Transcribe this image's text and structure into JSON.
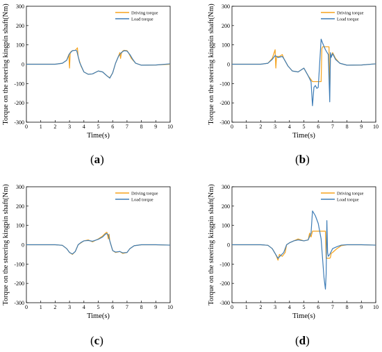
{
  "series_colors": {
    "Driving torque": "#f5a21b",
    "Load torque": "#3d7cb6"
  },
  "panel_labels": [
    "a",
    "b",
    "c",
    "d"
  ],
  "chart_data": [
    {
      "type": "line",
      "xlabel": "Time(s)",
      "ylabel": "Torque on the steering kingpin shaft(Nm)",
      "xlim": [
        0,
        10
      ],
      "ylim": [
        -300,
        300
      ],
      "xticks": [
        0,
        1,
        2,
        3,
        4,
        5,
        6,
        7,
        8,
        9,
        10
      ],
      "yticks": [
        300,
        200,
        100,
        0,
        -100,
        -200,
        -300
      ],
      "legend_position": "top-right",
      "series": [
        {
          "name": "Driving torque",
          "x": [
            0,
            1,
            2,
            2.5,
            2.8,
            2.95,
            3.0,
            3.05,
            3.1,
            3.2,
            3.4,
            3.5,
            3.55,
            3.6,
            3.8,
            4.0,
            4.3,
            4.6,
            5.0,
            5.3,
            5.6,
            5.8,
            6.0,
            6.2,
            6.4,
            6.5,
            6.55,
            6.6,
            6.7,
            6.8,
            7.0,
            7.1,
            7.3,
            7.6,
            8.0,
            9.0,
            10.0
          ],
          "y": [
            0,
            0,
            0,
            5,
            20,
            50,
            -20,
            60,
            65,
            70,
            72,
            80,
            85,
            40,
            -10,
            -40,
            -52,
            -50,
            -35,
            -40,
            -60,
            -70,
            -45,
            5,
            40,
            60,
            30,
            55,
            68,
            72,
            70,
            60,
            30,
            5,
            -5,
            -4,
            0
          ]
        },
        {
          "name": "Load torque",
          "x": [
            0,
            1,
            2,
            2.5,
            2.8,
            3.0,
            3.2,
            3.4,
            3.5,
            3.7,
            4.0,
            4.3,
            4.6,
            5.0,
            5.3,
            5.6,
            5.8,
            6.0,
            6.2,
            6.4,
            6.6,
            6.8,
            7.0,
            7.2,
            7.4,
            7.6,
            8.0,
            9.0,
            10.0
          ],
          "y": [
            0,
            0,
            0,
            5,
            20,
            55,
            70,
            72,
            70,
            10,
            -40,
            -52,
            -50,
            -35,
            -40,
            -60,
            -72,
            -45,
            5,
            40,
            60,
            70,
            68,
            50,
            25,
            5,
            -5,
            -4,
            2
          ]
        }
      ]
    },
    {
      "type": "line",
      "xlabel": "Time(s)",
      "ylabel": "Torque on the steering kingpin shaft(Nm)",
      "xlim": [
        0,
        10
      ],
      "ylim": [
        -300,
        300
      ],
      "xticks": [
        0,
        1,
        2,
        3,
        4,
        5,
        6,
        7,
        8,
        9,
        10
      ],
      "yticks": [
        300,
        200,
        100,
        0,
        -100,
        -200,
        -300
      ],
      "legend_position": "top-right",
      "series": [
        {
          "name": "Driving torque",
          "x": [
            0,
            1,
            2,
            2.5,
            2.8,
            3.0,
            3.05,
            3.1,
            3.3,
            3.5,
            3.6,
            3.9,
            4.2,
            4.6,
            5.0,
            5.3,
            5.5,
            5.6,
            6.2,
            6.25,
            6.3,
            6.35,
            6.5,
            6.75,
            6.8,
            6.85,
            6.9,
            7.0,
            7.2,
            7.5,
            8.0,
            9.0,
            10.0
          ],
          "y": [
            0,
            0,
            0,
            5,
            30,
            75,
            -20,
            40,
            40,
            50,
            30,
            -10,
            -35,
            -40,
            -20,
            -60,
            -80,
            -90,
            -90,
            80,
            90,
            90,
            90,
            90,
            -140,
            50,
            40,
            60,
            30,
            5,
            -5,
            -4,
            2
          ]
        },
        {
          "name": "Load torque",
          "x": [
            0,
            1,
            2,
            2.5,
            2.8,
            3.0,
            3.2,
            3.5,
            3.6,
            3.9,
            4.2,
            4.6,
            5.0,
            5.3,
            5.5,
            5.6,
            5.7,
            5.8,
            5.9,
            6.0,
            6.2,
            6.3,
            6.5,
            6.7,
            6.8,
            6.85,
            6.9,
            7.0,
            7.2,
            7.5,
            8.0,
            9.0,
            10.0
          ],
          "y": [
            0,
            0,
            0,
            5,
            25,
            45,
            35,
            40,
            30,
            -10,
            -35,
            -40,
            -20,
            -60,
            -90,
            -215,
            -120,
            -110,
            -125,
            -120,
            130,
            110,
            75,
            50,
            -195,
            60,
            35,
            55,
            25,
            5,
            -5,
            -4,
            2
          ]
        }
      ]
    },
    {
      "type": "line",
      "xlabel": "Time(s)",
      "ylabel": "Torque on the steering kingpin shaft(Nm)",
      "xlim": [
        0,
        10
      ],
      "ylim": [
        -300,
        300
      ],
      "xticks": [
        0,
        1,
        2,
        3,
        4,
        5,
        6,
        7,
        8,
        9,
        10
      ],
      "yticks": [
        300,
        200,
        100,
        0,
        -100,
        -200,
        -300
      ],
      "legend_position": "top-right",
      "series": [
        {
          "name": "Driving torque",
          "x": [
            0,
            1,
            2,
            2.5,
            2.8,
            3.0,
            3.2,
            3.4,
            3.6,
            3.8,
            4.0,
            4.3,
            4.6,
            5.0,
            5.3,
            5.5,
            5.6,
            5.7,
            5.75,
            5.8,
            6.0,
            6.2,
            6.5,
            6.7,
            7.0,
            7.2,
            7.5,
            8.0,
            9.0,
            10.0
          ],
          "y": [
            0,
            0,
            0,
            -3,
            -20,
            -40,
            -50,
            -35,
            0,
            10,
            20,
            25,
            15,
            30,
            45,
            60,
            65,
            30,
            55,
            20,
            -30,
            -40,
            -35,
            -45,
            -40,
            -20,
            -5,
            0,
            0,
            -2
          ]
        },
        {
          "name": "Load torque",
          "x": [
            0,
            1,
            2,
            2.5,
            2.8,
            3.0,
            3.2,
            3.4,
            3.6,
            3.8,
            4.0,
            4.3,
            4.6,
            5.0,
            5.3,
            5.5,
            5.6,
            5.7,
            5.8,
            6.0,
            6.2,
            6.5,
            6.7,
            7.0,
            7.2,
            7.5,
            8.0,
            9.0,
            10.0
          ],
          "y": [
            0,
            0,
            0,
            -3,
            -20,
            -40,
            -48,
            -35,
            0,
            12,
            20,
            22,
            18,
            28,
            40,
            55,
            58,
            50,
            20,
            -30,
            -38,
            -35,
            -42,
            -40,
            -20,
            -5,
            0,
            0,
            -2
          ]
        }
      ]
    },
    {
      "type": "line",
      "xlabel": "Time(s)",
      "ylabel": "Torque on the steering kingpin shaft(Nm)",
      "xlim": [
        0,
        10
      ],
      "ylim": [
        -300,
        300
      ],
      "xticks": [
        0,
        1,
        2,
        3,
        4,
        5,
        6,
        7,
        8,
        9,
        10
      ],
      "yticks": [
        300,
        200,
        100,
        0,
        -100,
        -200,
        -300
      ],
      "legend_position": "top-right",
      "series": [
        {
          "name": "Driving torque",
          "x": [
            0,
            1,
            2,
            2.5,
            2.8,
            3.0,
            3.1,
            3.2,
            3.3,
            3.5,
            3.7,
            3.8,
            4.0,
            4.3,
            4.6,
            5.0,
            5.3,
            5.4,
            5.5,
            5.6,
            6.5,
            6.55,
            6.8,
            6.85,
            6.9,
            7.0,
            7.3,
            7.6,
            8.0,
            9.0,
            10.0
          ],
          "y": [
            0,
            0,
            0,
            -3,
            -20,
            -45,
            -60,
            -80,
            -50,
            -60,
            -40,
            0,
            10,
            20,
            30,
            20,
            25,
            60,
            40,
            70,
            70,
            -70,
            -70,
            -65,
            -45,
            -40,
            -20,
            -5,
            0,
            0,
            -2
          ]
        },
        {
          "name": "Load torque",
          "x": [
            0,
            1,
            2,
            2.5,
            2.8,
            3.0,
            3.2,
            3.4,
            3.6,
            3.8,
            4.0,
            4.3,
            4.6,
            5.0,
            5.3,
            5.5,
            5.6,
            5.8,
            6.0,
            6.2,
            6.4,
            6.5,
            6.55,
            6.6,
            6.65,
            6.7,
            6.8,
            7.0,
            7.3,
            7.6,
            8.0,
            9.0,
            10.0
          ],
          "y": [
            0,
            0,
            0,
            -3,
            -20,
            -45,
            -70,
            -55,
            -40,
            0,
            10,
            20,
            25,
            20,
            25,
            60,
            175,
            150,
            110,
            30,
            -170,
            -230,
            -150,
            125,
            -40,
            -60,
            -50,
            -20,
            -10,
            -2,
            0,
            0,
            -2
          ]
        }
      ]
    }
  ]
}
